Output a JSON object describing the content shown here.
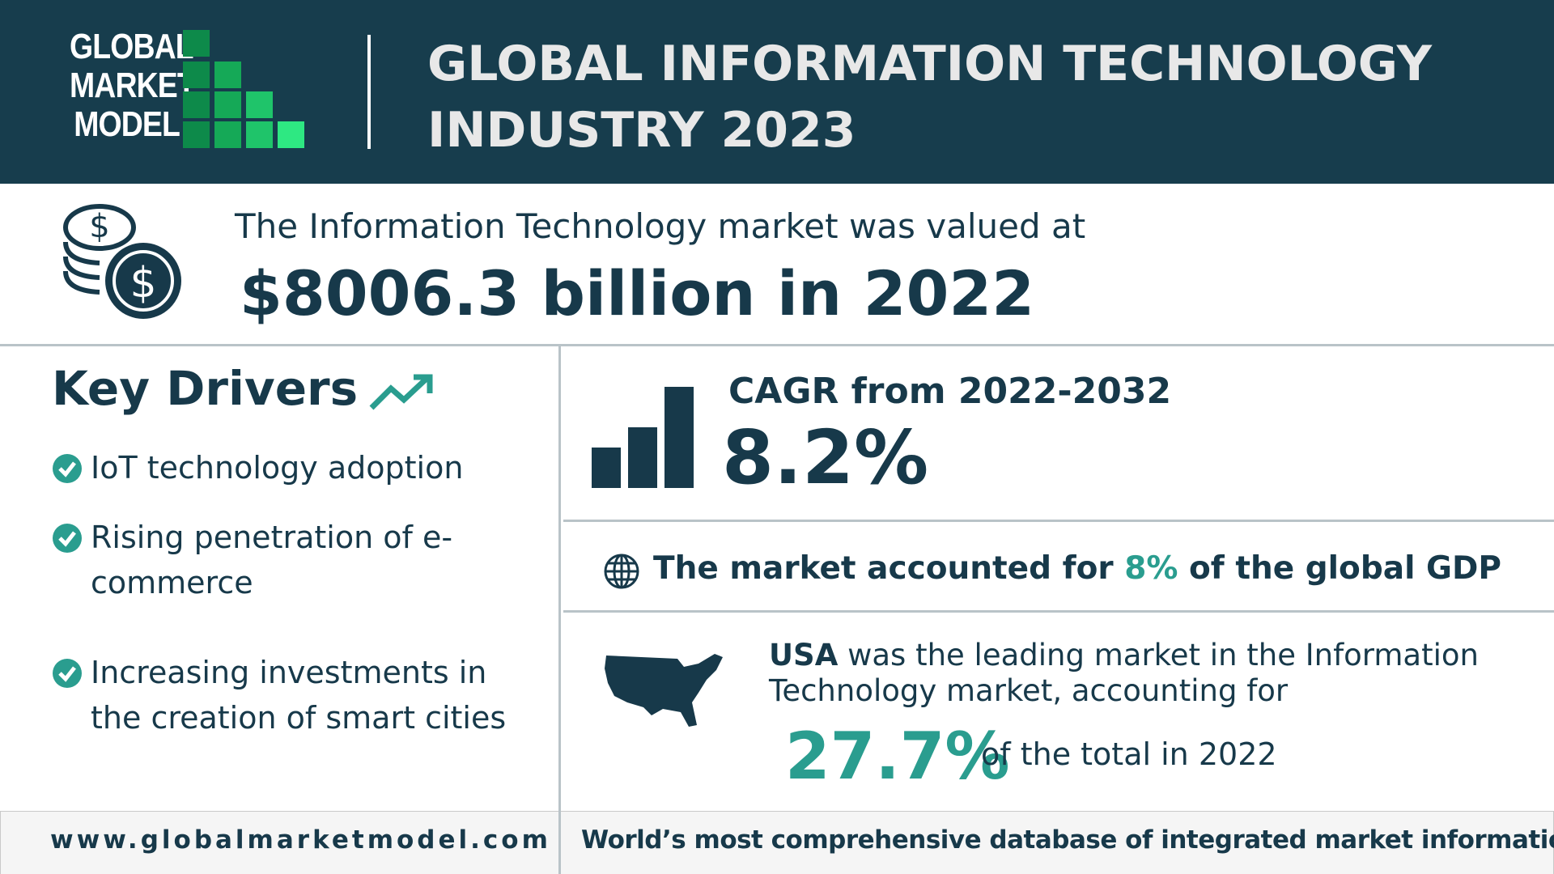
{
  "header": {
    "logo": [
      "GLOBAL",
      "MARKET",
      "MODEL"
    ],
    "title": "GLOBAL INFORMATION TECHNOLOGY INDUSTRY 2023"
  },
  "valuation": {
    "intro": "The Information Technology market was valued at",
    "value": "$8006.3 billion in 2022"
  },
  "key_drivers": {
    "title": "Key Drivers",
    "items": [
      "IoT technology adoption",
      "Rising penetration of e-commerce",
      "Increasing investments in the creation of smart cities"
    ]
  },
  "cagr": {
    "label": "CAGR from 2022-2032",
    "value": "8.2%"
  },
  "gdp": {
    "before": "The market accounted for",
    "value": "8%",
    "after": "of the global GDP"
  },
  "usa": {
    "country": "USA",
    "text": "was the leading market in the Information Technology market, accounting for",
    "value": "27.7%",
    "after": "of the total in 2022"
  },
  "footer": {
    "url": "www.globalmarketmodel.com",
    "tagline": "World’s most comprehensive database of integrated market information"
  }
}
